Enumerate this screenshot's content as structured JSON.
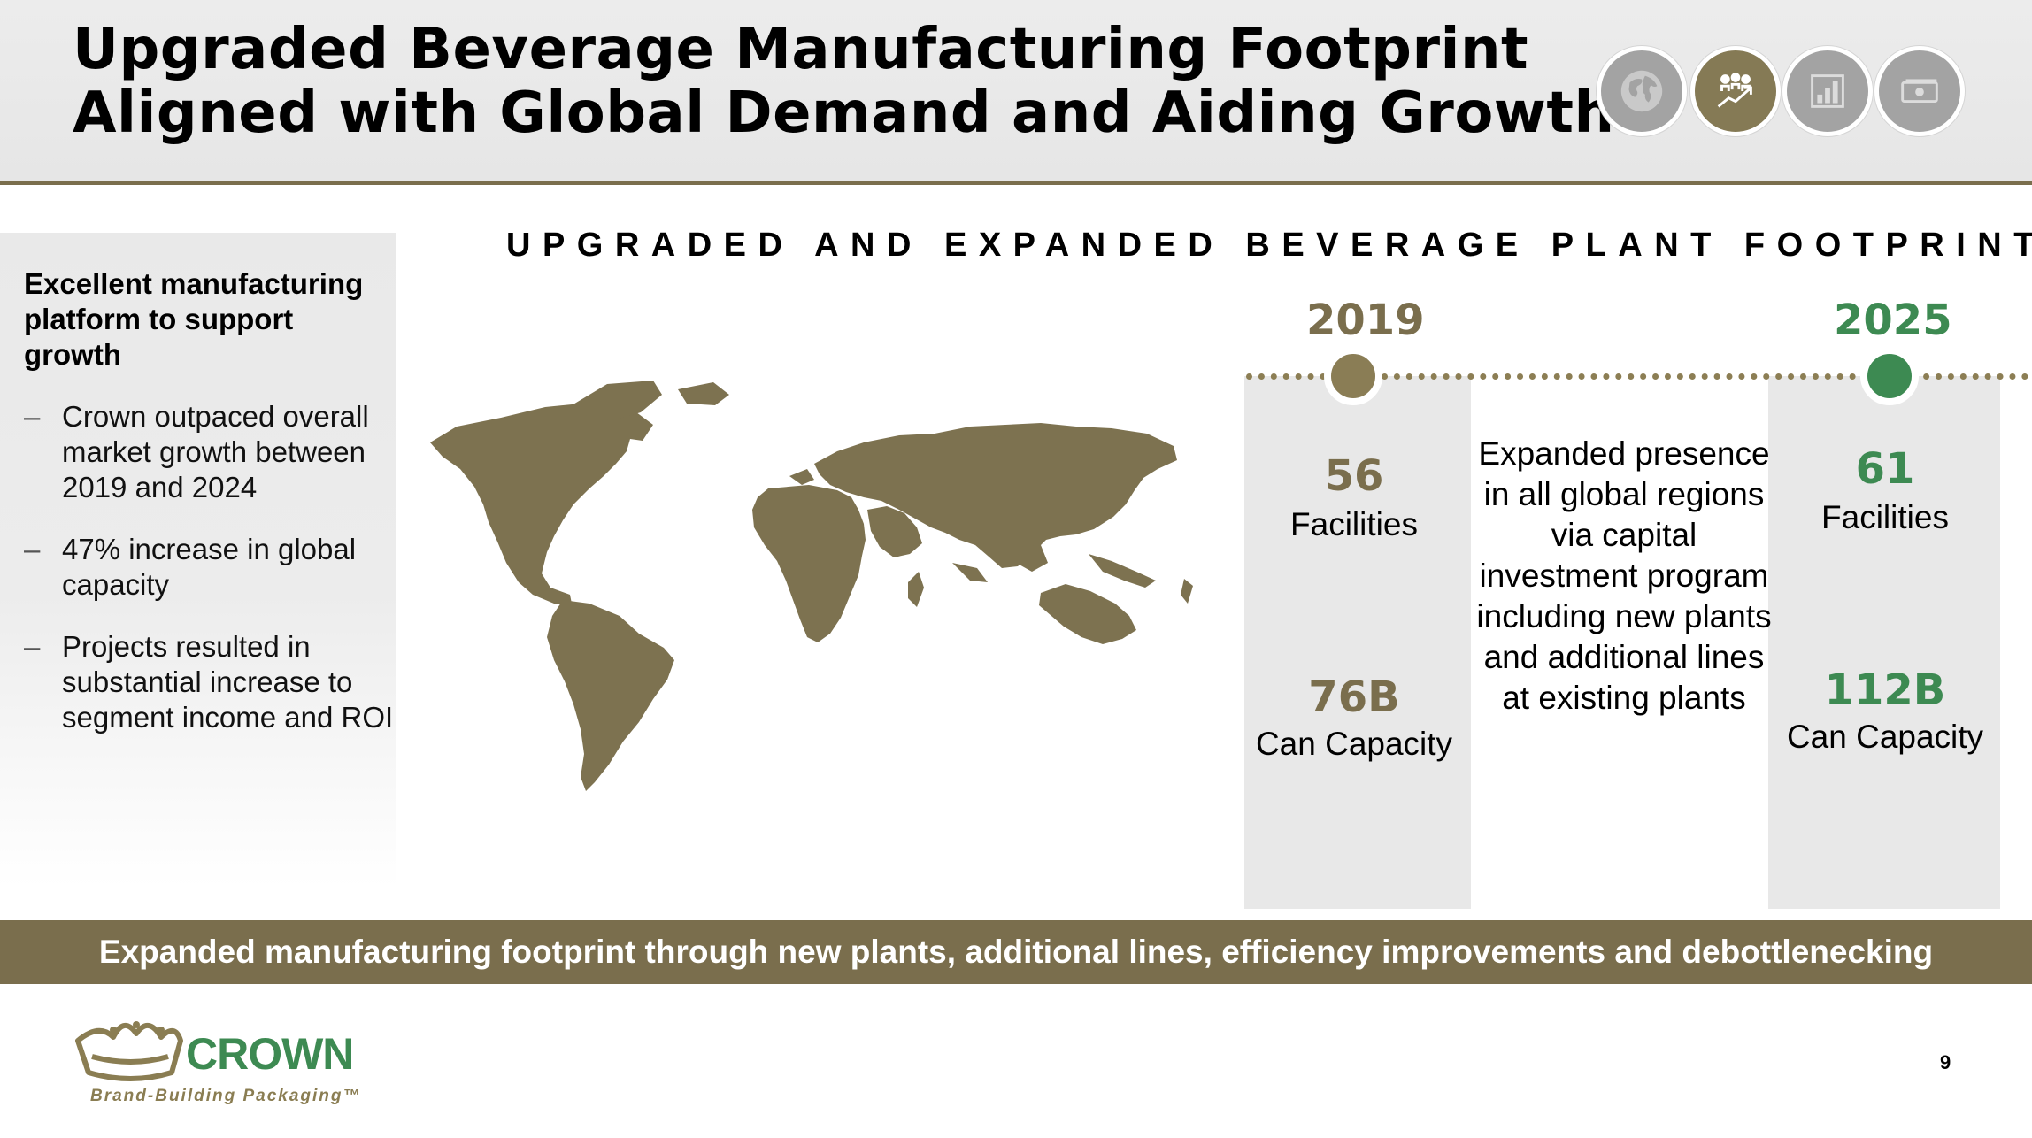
{
  "header": {
    "title_line1": "Upgraded Beverage Manufacturing Footprint",
    "title_line2": "Aligned with Global Demand and Aiding Growth",
    "icons": [
      "globe-icon",
      "people-growth-icon",
      "bar-chart-icon",
      "money-icon"
    ],
    "active_icon": "people-growth-icon"
  },
  "sidebar": {
    "heading": "Excellent manufacturing platform to support growth",
    "bullets": [
      "Crown outpaced overall market growth between 2019 and 2024",
      "47% increase in global capacity",
      "Projects resulted in substantial increase to segment income and ROI"
    ]
  },
  "main": {
    "section_title": "UPGRADED AND EXPANDED BEVERAGE PLANT FOOTPRINT",
    "year_2019": {
      "year": "2019",
      "facilities_value": "56",
      "facilities_label": "Facilities",
      "capacity_value": "76B",
      "capacity_label": "Can Capacity"
    },
    "middle_text": "Expanded presence in all global regions via capital investment program including new plants and additional lines at existing plants",
    "year_2025": {
      "year": "2025",
      "facilities_value": "61",
      "facilities_label": "Facilities",
      "capacity_value": "112B",
      "capacity_label": "Can Capacity"
    }
  },
  "banner": "Expanded manufacturing footprint through new plants, additional lines, efficiency improvements and debottlenecking",
  "footer": {
    "brand": "CROWN",
    "tagline": "Brand-Building Packaging™",
    "page_number": "9"
  },
  "colors": {
    "olive": "#7a6e4d",
    "green": "#3d8a52",
    "grey_panel": "#e8e8e8"
  }
}
